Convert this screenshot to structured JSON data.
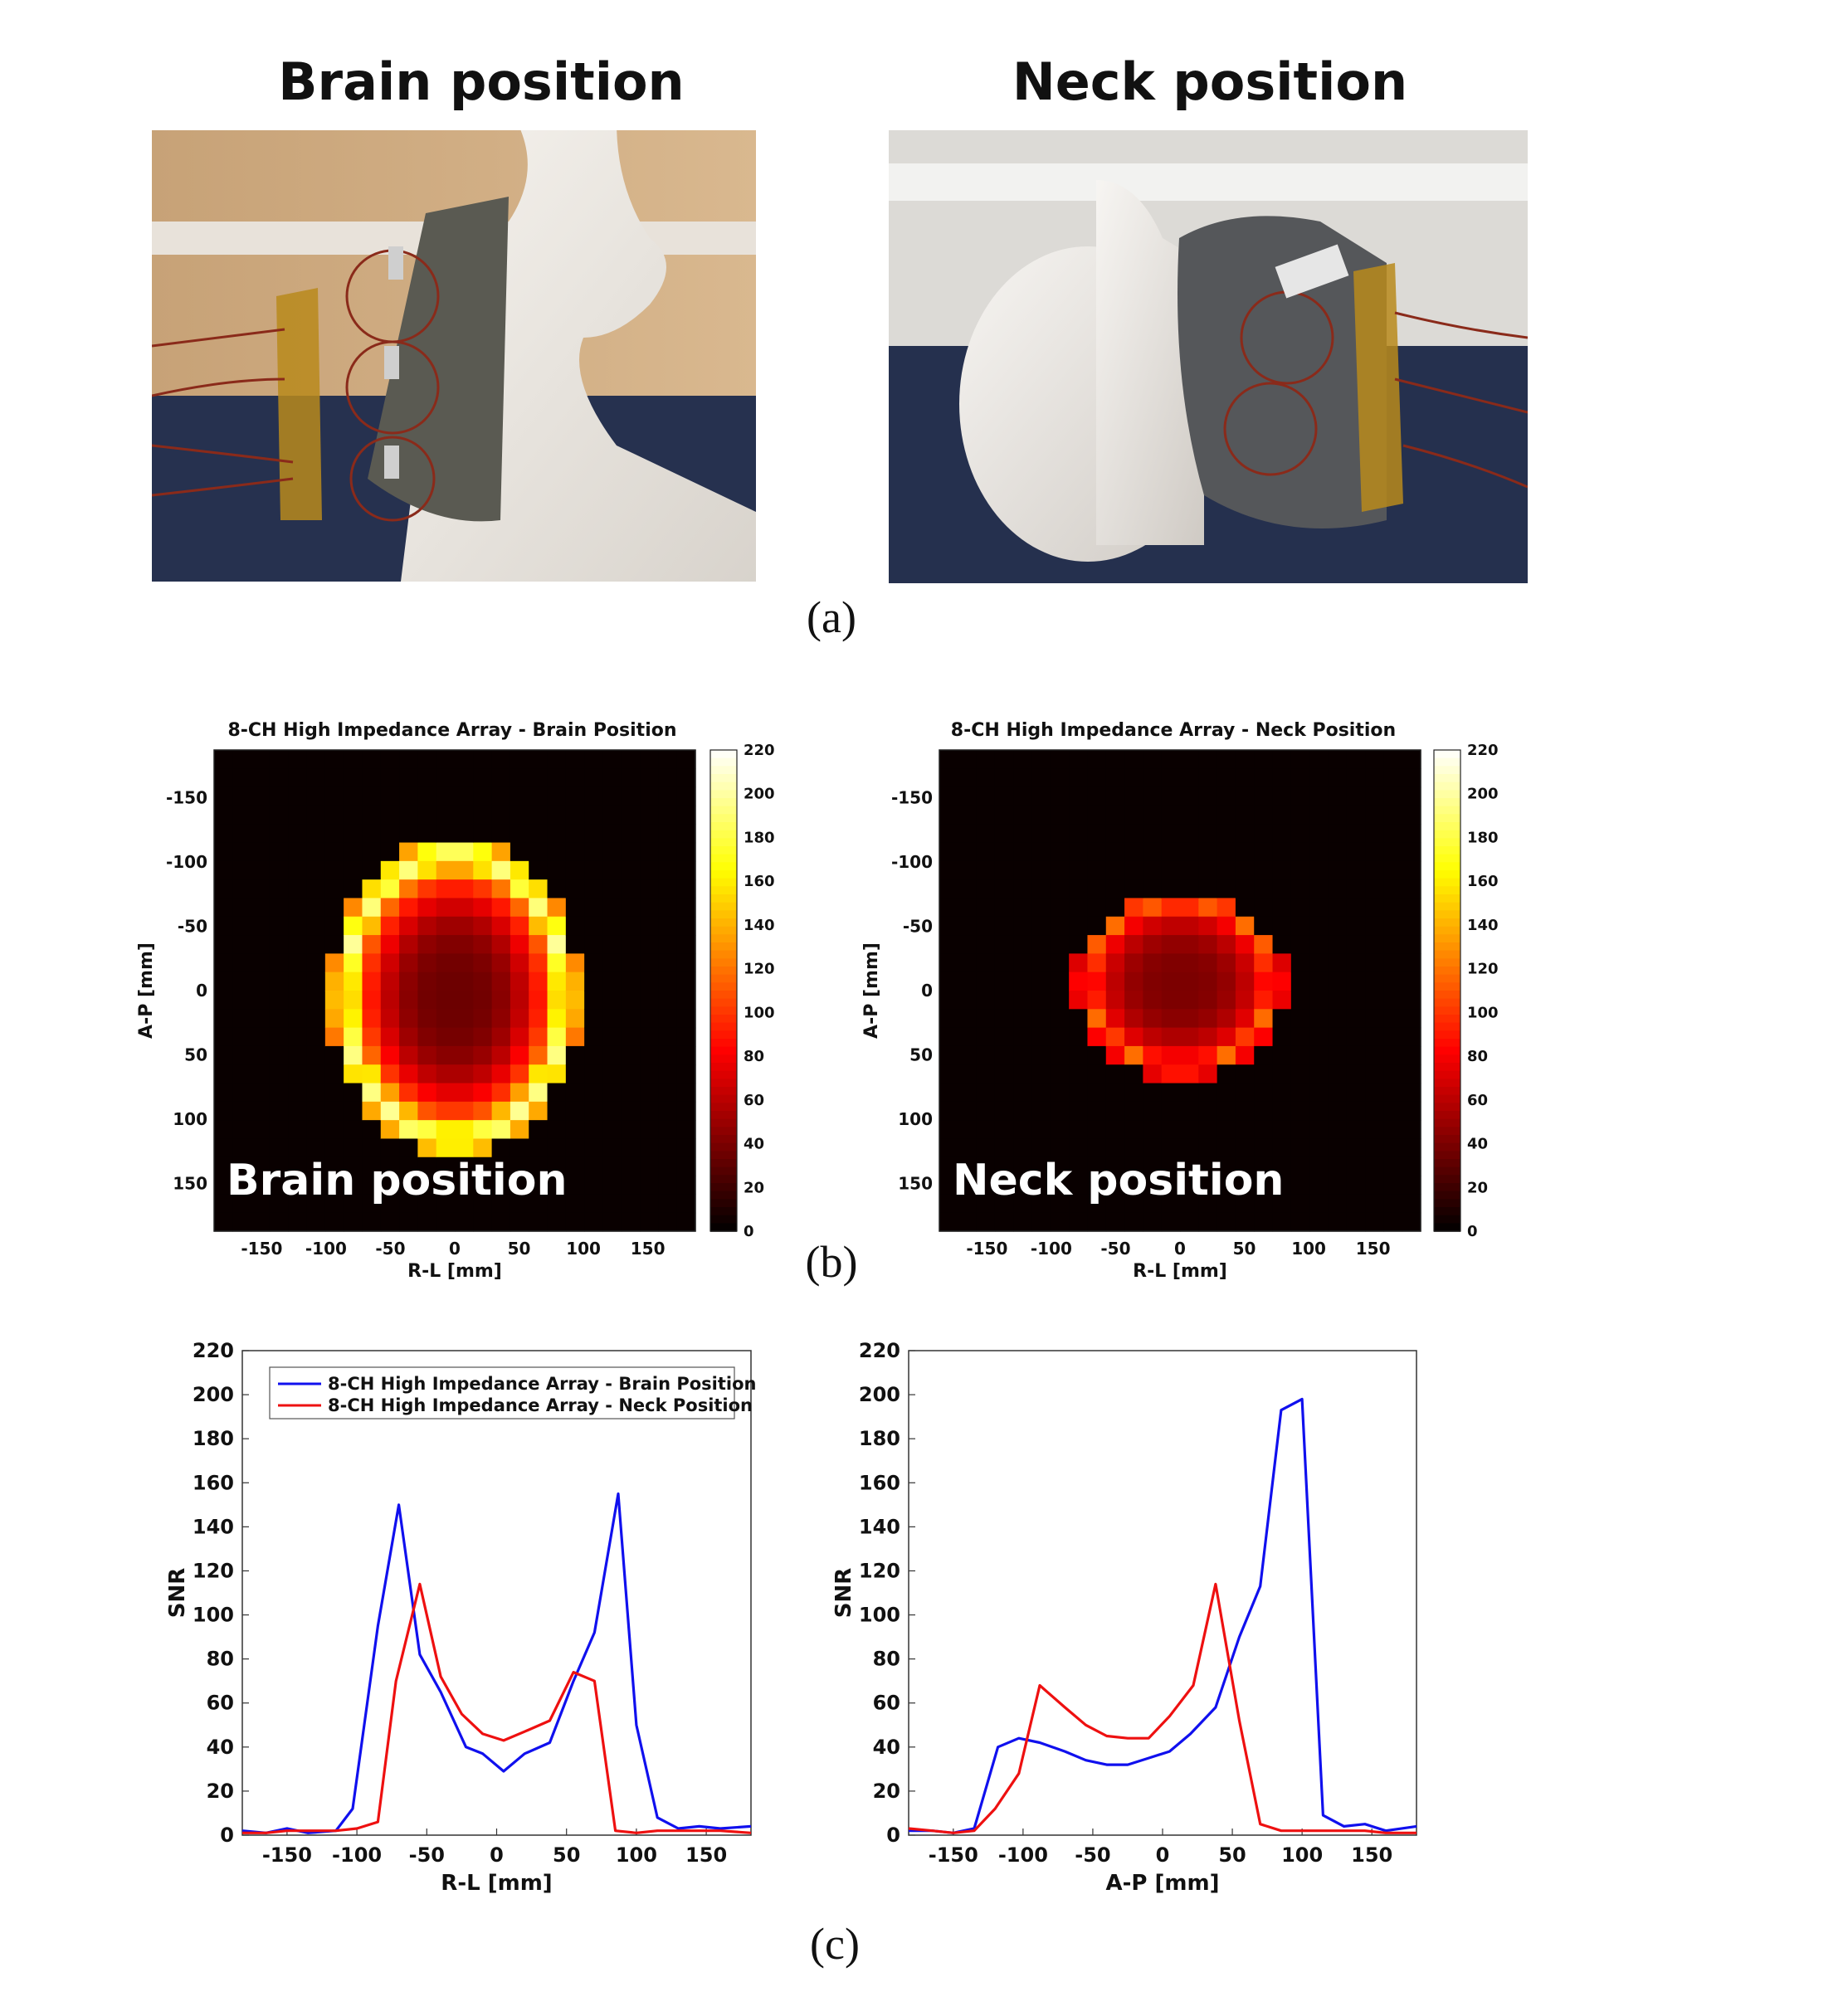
{
  "panel_a": {
    "label": "(a)",
    "photos": [
      {
        "title": "Brain position",
        "subject": "mannequin-head-coil-brain",
        "bg": "#c8a47a"
      },
      {
        "title": "Neck position",
        "subject": "mannequin-head-coil-neck",
        "bg": "#d9d6d2"
      }
    ]
  },
  "panel_b": {
    "label": "(b)",
    "maps": [
      {
        "title": "8-CH High Impedance Array - Brain Position",
        "overlay": "Brain position",
        "xlabel": "R-L [mm]",
        "ylabel": "A-P [mm]"
      },
      {
        "title": "8-CH High Impedance Array - Neck Position",
        "overlay": "Neck position",
        "xlabel": "R-L [mm]",
        "ylabel": "A-P [mm]"
      }
    ],
    "xticks": [
      "-150",
      "-100",
      "-50",
      "0",
      "50",
      "100",
      "150"
    ],
    "yticks": [
      "-150",
      "-100",
      "-50",
      "0",
      "50",
      "100",
      "150"
    ],
    "colorbar_ticks": [
      "220",
      "200",
      "180",
      "160",
      "140",
      "120",
      "100",
      "80",
      "60",
      "40",
      "20",
      "0"
    ],
    "colormap": "hot"
  },
  "panel_c": {
    "label": "(c)",
    "legend": [
      "8-CH High Impedance Array - Brain Position",
      "8-CH High Impedance Array - Neck Position"
    ],
    "series_colors": [
      "#1010ee",
      "#ee1010"
    ],
    "ylabel": "SNR",
    "xlabels": [
      "R-L [mm]",
      "A-P [mm]"
    ],
    "xticks": [
      "-150",
      "-100",
      "-50",
      "0",
      "50",
      "100",
      "150"
    ],
    "yticks": [
      "220",
      "200",
      "180",
      "160",
      "140",
      "120",
      "100",
      "80",
      "60",
      "40",
      "20",
      "0"
    ]
  },
  "chart_data": [
    {
      "type": "heatmap",
      "title": "8-CH High Impedance Array - Brain Position",
      "xlabel": "R-L [mm]",
      "ylabel": "A-P [mm]",
      "xlim": [
        -187,
        187
      ],
      "ylim": [
        -187,
        187
      ],
      "clim": [
        0,
        220
      ],
      "shape": "ellipse",
      "center": [
        0,
        5
      ],
      "semi_axes": [
        93,
        120
      ],
      "rim_snr": 200,
      "interior_snr": 35
    },
    {
      "type": "heatmap",
      "title": "8-CH High Impedance Array - Neck Position",
      "xlabel": "R-L [mm]",
      "ylabel": "A-P [mm]",
      "xlim": [
        -187,
        187
      ],
      "ylim": [
        -187,
        187
      ],
      "clim": [
        0,
        220
      ],
      "shape": "ellipse",
      "center": [
        0,
        -5
      ],
      "semi_axes": [
        78,
        70
      ],
      "rim_snr": 120,
      "interior_snr": 40
    },
    {
      "type": "line",
      "xlabel": "R-L [mm]",
      "ylabel": "SNR",
      "xlim": [
        -182,
        182
      ],
      "ylim": [
        0,
        220
      ],
      "series": [
        {
          "name": "8-CH High Impedance Array - Brain Position",
          "x": [
            -182,
            -165,
            -150,
            -135,
            -115,
            -103,
            -85,
            -70,
            -55,
            -40,
            -22,
            -10,
            5,
            20,
            38,
            55,
            70,
            87,
            100,
            115,
            130,
            145,
            160,
            182
          ],
          "y": [
            2,
            1,
            3,
            1,
            2,
            12,
            95,
            150,
            82,
            65,
            40,
            37,
            29,
            37,
            42,
            70,
            92,
            155,
            50,
            8,
            3,
            4,
            3,
            4
          ]
        },
        {
          "name": "8-CH High Impedance Array - Neck Position",
          "x": [
            -182,
            -165,
            -150,
            -135,
            -115,
            -100,
            -85,
            -72,
            -55,
            -40,
            -25,
            -10,
            5,
            20,
            38,
            55,
            70,
            85,
            100,
            115,
            130,
            145,
            160,
            182
          ],
          "y": [
            1,
            1,
            2,
            2,
            2,
            3,
            6,
            70,
            114,
            72,
            55,
            46,
            43,
            47,
            52,
            74,
            70,
            2,
            1,
            2,
            2,
            2,
            2,
            1
          ]
        }
      ]
    },
    {
      "type": "line",
      "xlabel": "A-P [mm]",
      "ylabel": "SNR",
      "xlim": [
        -182,
        182
      ],
      "ylim": [
        0,
        220
      ],
      "series": [
        {
          "name": "8-CH High Impedance Array - Brain Position",
          "x": [
            -182,
            -165,
            -150,
            -135,
            -118,
            -103,
            -88,
            -70,
            -55,
            -40,
            -25,
            -10,
            5,
            20,
            38,
            55,
            70,
            85,
            100,
            115,
            130,
            145,
            160,
            182
          ],
          "y": [
            2,
            2,
            1,
            3,
            40,
            44,
            42,
            38,
            34,
            32,
            32,
            35,
            38,
            46,
            58,
            90,
            113,
            193,
            198,
            9,
            4,
            5,
            2,
            4
          ]
        },
        {
          "name": "8-CH High Impedance Array - Neck Position",
          "x": [
            -182,
            -165,
            -150,
            -135,
            -120,
            -103,
            -88,
            -70,
            -55,
            -40,
            -25,
            -10,
            5,
            22,
            38,
            55,
            70,
            85,
            100,
            115,
            130,
            145,
            160,
            182
          ],
          "y": [
            3,
            2,
            1,
            2,
            12,
            28,
            68,
            58,
            50,
            45,
            44,
            44,
            54,
            68,
            114,
            52,
            5,
            2,
            2,
            2,
            2,
            2,
            1,
            1
          ]
        }
      ]
    }
  ]
}
